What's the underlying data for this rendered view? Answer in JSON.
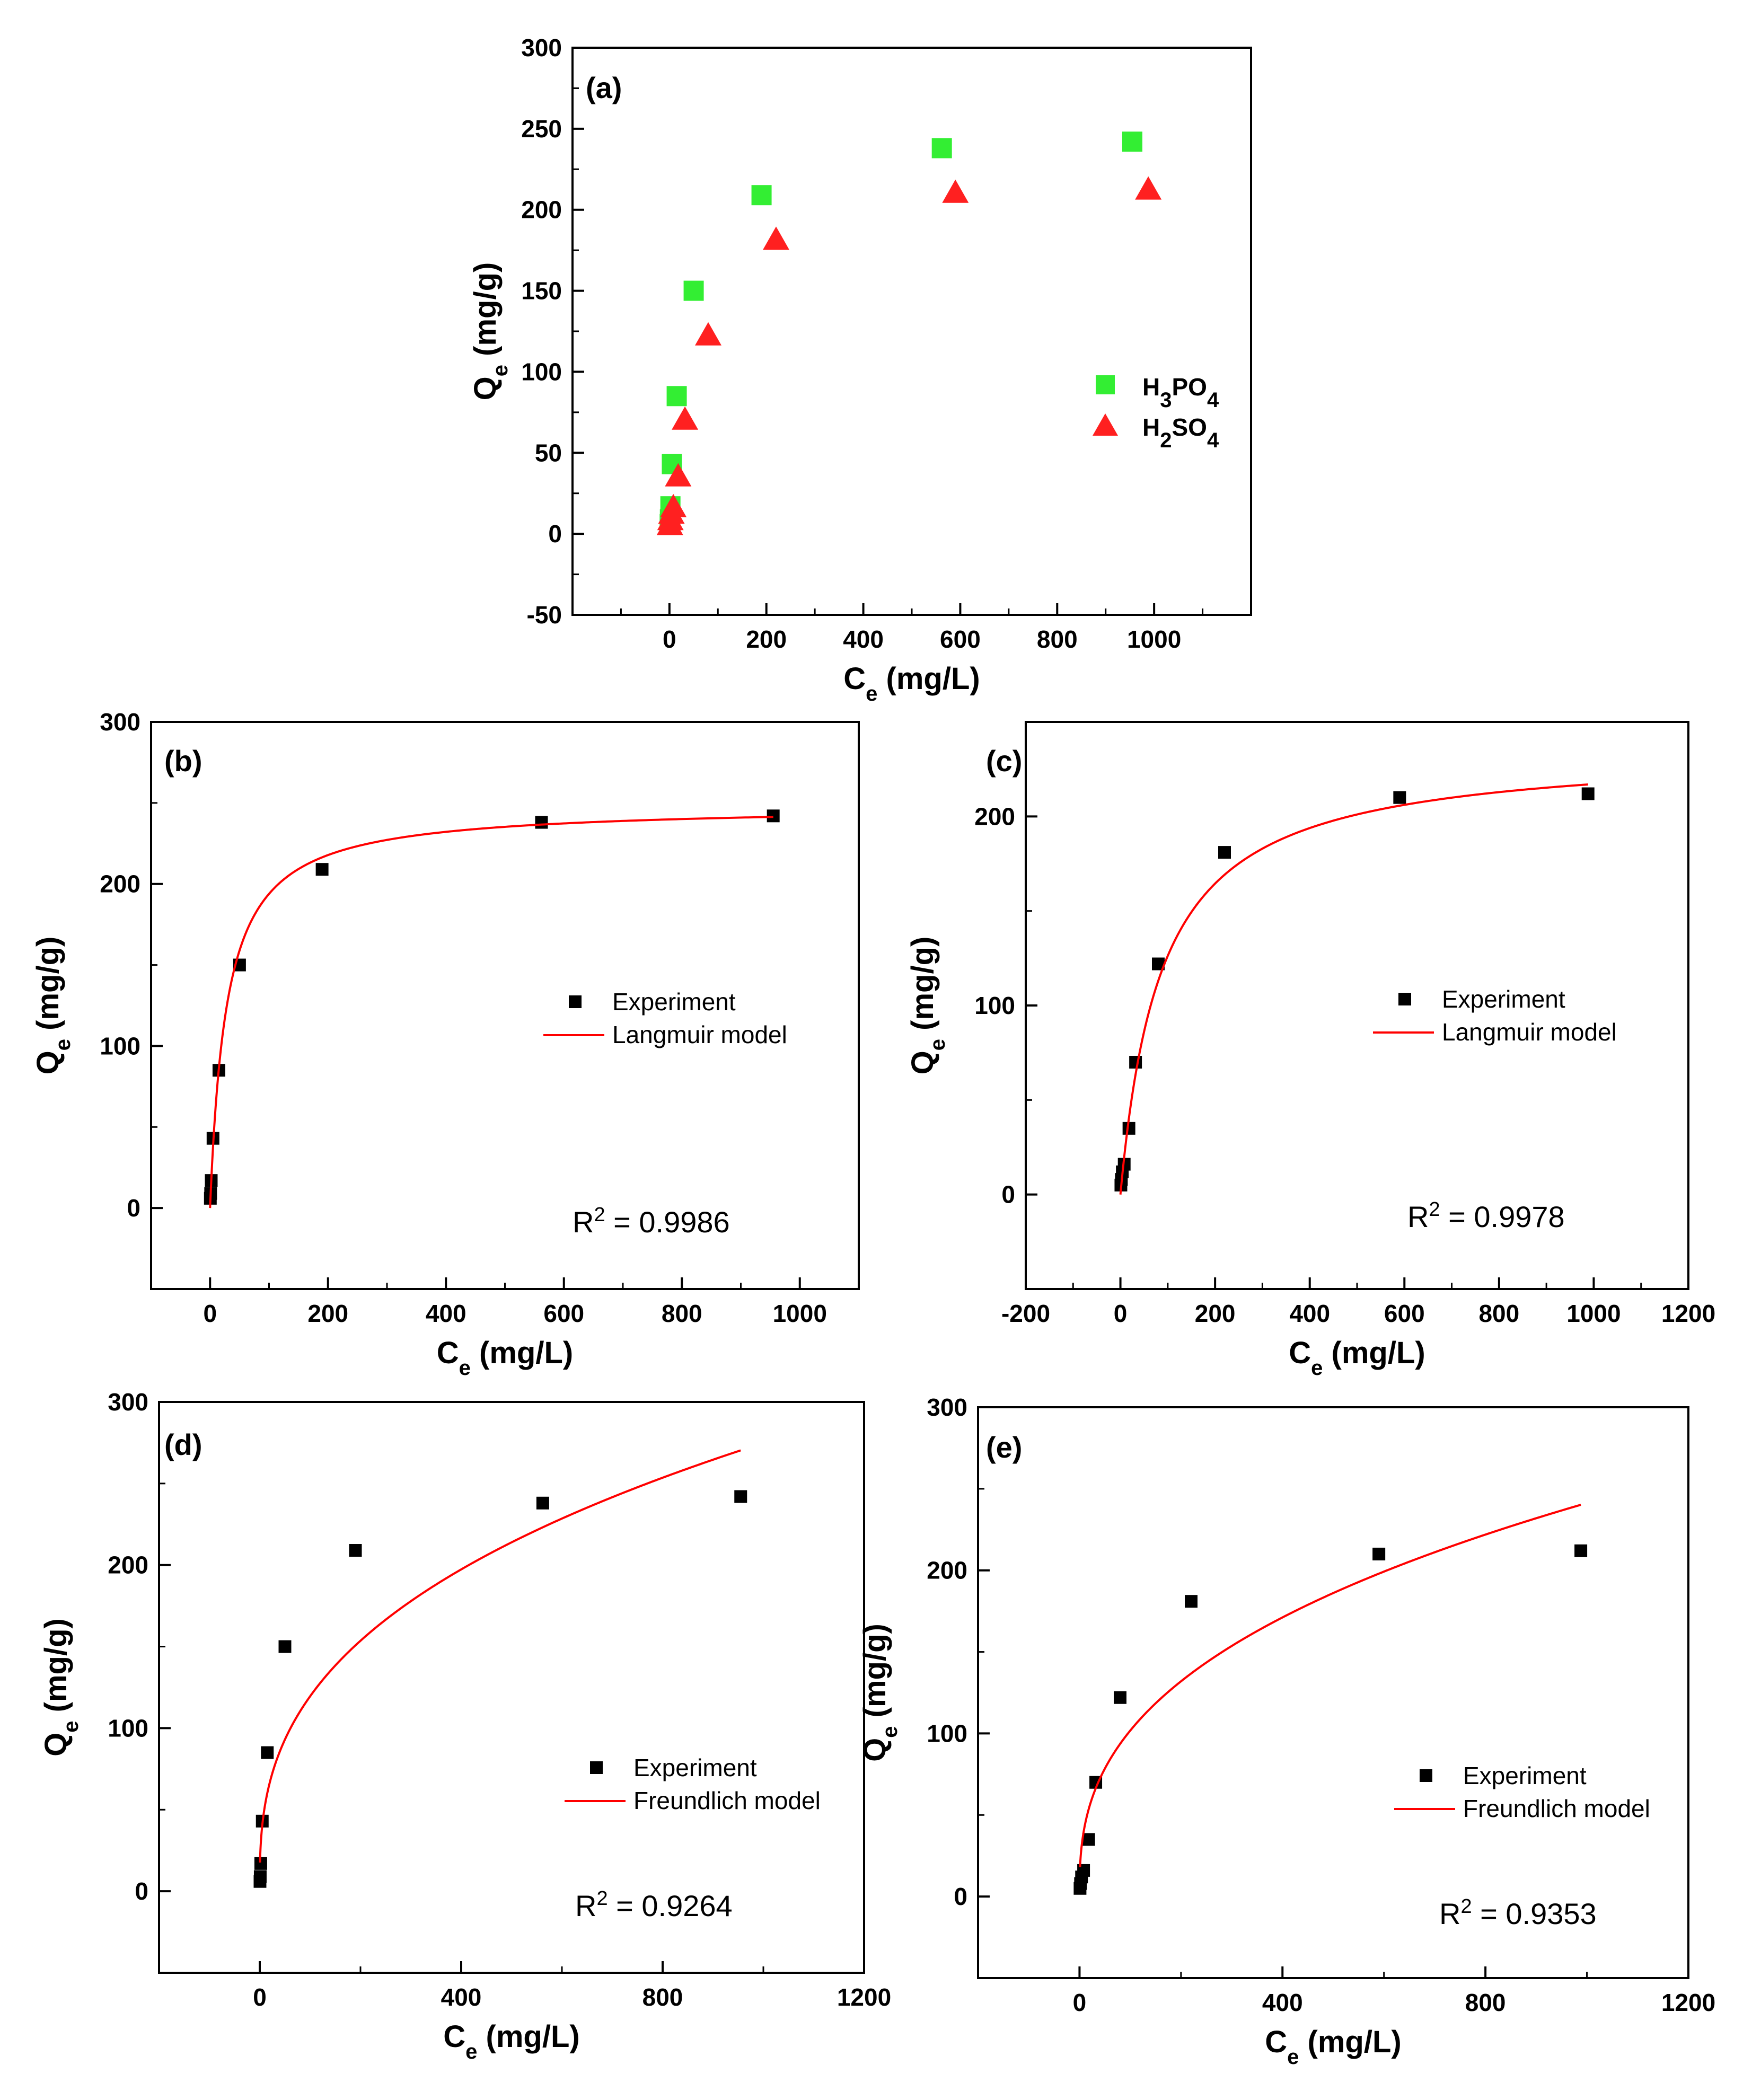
{
  "chart_data": [
    {
      "panel": "(a)",
      "type": "scatter",
      "xlabel": "Ce (mg/L)",
      "ylabel": "Qe (mg/g)",
      "xlim": [
        -200,
        1200
      ],
      "ylim": [
        -50,
        300
      ],
      "xticks": [
        0,
        200,
        400,
        600,
        800,
        1000
      ],
      "yticks": [
        -50,
        0,
        50,
        100,
        150,
        200,
        250,
        300
      ],
      "legend_position": "right",
      "series": [
        {
          "name": "H3PO4",
          "color": "#33ee33",
          "marker": "square",
          "x": [
            0.5,
            1,
            2,
            5,
            15,
            50,
            190,
            562,
            955
          ],
          "y": [
            6,
            9,
            17,
            43,
            85,
            150,
            209,
            238,
            242
          ]
        },
        {
          "name": "H2SO4",
          "color": "#ff2020",
          "marker": "triangle",
          "x": [
            1,
            2,
            4,
            8,
            18,
            32,
            80,
            220,
            590,
            988
          ],
          "y": [
            5,
            8,
            12,
            16,
            35,
            70,
            122,
            181,
            210,
            212
          ]
        }
      ]
    },
    {
      "panel": "(b)",
      "type": "scatter",
      "xlabel": "Ce (mg/L)",
      "ylabel": "Qe (mg/g)",
      "xlim": [
        -100,
        1100
      ],
      "ylim": [
        -50,
        300
      ],
      "xticks": [
        0,
        200,
        400,
        600,
        800,
        1000
      ],
      "yticks": [
        0,
        100,
        200,
        300
      ],
      "legend": [
        "Experiment",
        "Langmuir model"
      ],
      "legend_position": "right",
      "annotation": {
        "text": "R",
        "sup": "2",
        "tail": " = 0.9986"
      },
      "series": [
        {
          "name": "Experiment",
          "color": "#000000",
          "marker": "square",
          "x": [
            0.5,
            1,
            2,
            5,
            15,
            50,
            190,
            562,
            955
          ],
          "y": [
            6,
            9,
            17,
            43,
            85,
            150,
            209,
            238,
            242
          ]
        },
        {
          "name": "Langmuir model",
          "color": "#ff0000",
          "line": true,
          "model": "langmuir",
          "params": {
            "qm": 248.5,
            "k": 0.0355
          },
          "x_range": [
            0,
            955
          ]
        }
      ]
    },
    {
      "panel": "(c)",
      "type": "scatter",
      "xlabel": "Ce (mg/L)",
      "ylabel": "Qe (mg/g)",
      "xlim": [
        -200,
        1200
      ],
      "ylim": [
        -50,
        250
      ],
      "xticks": [
        -200,
        0,
        200,
        400,
        600,
        800,
        1000,
        1200
      ],
      "yticks": [
        0,
        100,
        200
      ],
      "legend": [
        "Experiment",
        "Langmuir model"
      ],
      "legend_position": "right",
      "annotation": {
        "text": "R",
        "sup": "2",
        "tail": " = 0.9978"
      },
      "series": [
        {
          "name": "Experiment",
          "color": "#000000",
          "marker": "square",
          "x": [
            1,
            2,
            4,
            8,
            18,
            32,
            80,
            220,
            590,
            988
          ],
          "y": [
            5,
            8,
            12,
            16,
            35,
            70,
            122,
            181,
            210,
            212
          ]
        },
        {
          "name": "Langmuir model",
          "color": "#ff0000",
          "line": true,
          "model": "langmuir",
          "params": {
            "qm": 236,
            "k": 0.0115
          },
          "x_range": [
            0,
            988
          ]
        }
      ]
    },
    {
      "panel": "(d)",
      "type": "scatter",
      "xlabel": "Ce (mg/L)",
      "ylabel": "Qe (mg/g)",
      "xlim": [
        -200,
        1200
      ],
      "ylim": [
        -50,
        300
      ],
      "xticks": [
        0,
        400,
        800,
        1200
      ],
      "yticks": [
        0,
        100,
        200,
        300
      ],
      "legend": [
        "Experiment",
        "Freundlich model"
      ],
      "legend_position": "right",
      "annotation": {
        "text": "R",
        "sup": "2",
        "tail": " = 0.9264"
      },
      "series": [
        {
          "name": "Experiment",
          "color": "#000000",
          "marker": "square",
          "x": [
            0.5,
            1,
            2,
            5,
            15,
            50,
            190,
            562,
            955
          ],
          "y": [
            6,
            9,
            17,
            43,
            85,
            150,
            209,
            238,
            242
          ]
        },
        {
          "name": "Freundlich model",
          "color": "#ff0000",
          "line": true,
          "model": "freundlich",
          "params": {
            "kf": 22.6,
            "n": 2.765
          },
          "x_range": [
            0.5,
            955
          ]
        }
      ]
    },
    {
      "panel": "(e)",
      "type": "scatter",
      "xlabel": "Ce (mg/L)",
      "ylabel": "Qe (mg/g)",
      "xlim": [
        -200,
        1200
      ],
      "ylim": [
        -50,
        300
      ],
      "xticks": [
        0,
        400,
        800,
        1200
      ],
      "yticks": [
        0,
        100,
        200,
        300
      ],
      "legend": [
        "Experiment",
        "Freundlich model"
      ],
      "legend_position": "right",
      "annotation": {
        "text": "R",
        "sup": "2",
        "tail": " = 0.9353"
      },
      "series": [
        {
          "name": "Experiment",
          "color": "#000000",
          "marker": "square",
          "x": [
            1,
            2,
            4,
            8,
            18,
            32,
            80,
            220,
            590,
            988
          ],
          "y": [
            5,
            8,
            12,
            16,
            35,
            70,
            122,
            181,
            210,
            212
          ]
        },
        {
          "name": "Freundlich model",
          "color": "#ff0000",
          "line": true,
          "model": "freundlich",
          "params": {
            "kf": 18.1,
            "n": 2.667
          },
          "x_range": [
            1,
            988
          ]
        }
      ]
    }
  ]
}
